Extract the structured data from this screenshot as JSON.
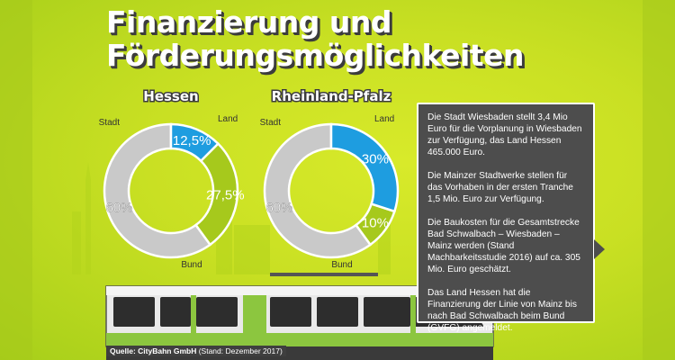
{
  "title": {
    "line1": "Finanzierung und",
    "line2": "Förderungsmöglichkeiten"
  },
  "colors": {
    "background": "#c9e023",
    "stadt": "#1e9de0",
    "land": "#a6c91c",
    "bund": "#c9c9c9",
    "panel": "#4d4d4d",
    "tram_green": "#8cc63f"
  },
  "chart_data": [
    {
      "type": "pie",
      "title": "Hessen",
      "labels": [
        "Stadt",
        "Land",
        "Bund"
      ],
      "values": [
        12.5,
        27.5,
        60
      ],
      "value_labels": [
        "12,5%",
        "27,5%",
        "60%"
      ]
    },
    {
      "type": "pie",
      "title": "Rheinland-Pfalz",
      "labels": [
        "Stadt",
        "Land",
        "Bund"
      ],
      "values": [
        30,
        10,
        60
      ],
      "value_labels": [
        "30%",
        "10%",
        "60%"
      ]
    }
  ],
  "info_box": {
    "paragraphs": [
      "Die Stadt Wiesbaden stellt 3,4 Mio Euro für die Vorplanung in Wiesbaden zur Verfügung, das Land Hessen 465.000 Euro.",
      "Die Mainzer Stadtwerke stellen für das Vorhaben in der ersten Tranche 1,5 Mio. Euro zur Verfügung.",
      "Die Baukosten für die Gesamtstrecke Bad Schwalbach – Wiesbaden – Mainz werden (Stand Machbarkeitsstudie 2016) auf ca. 305 Mio. Euro geschätzt.",
      "Das Land Hessen hat die Finanzierung der Linie von Mainz bis nach Bad Schwalbach beim Bund (GVFG) angemeldet."
    ]
  },
  "source": {
    "label": "Quelle: CityBahn GmbH",
    "date": "(Stand: Dezember 2017)"
  }
}
